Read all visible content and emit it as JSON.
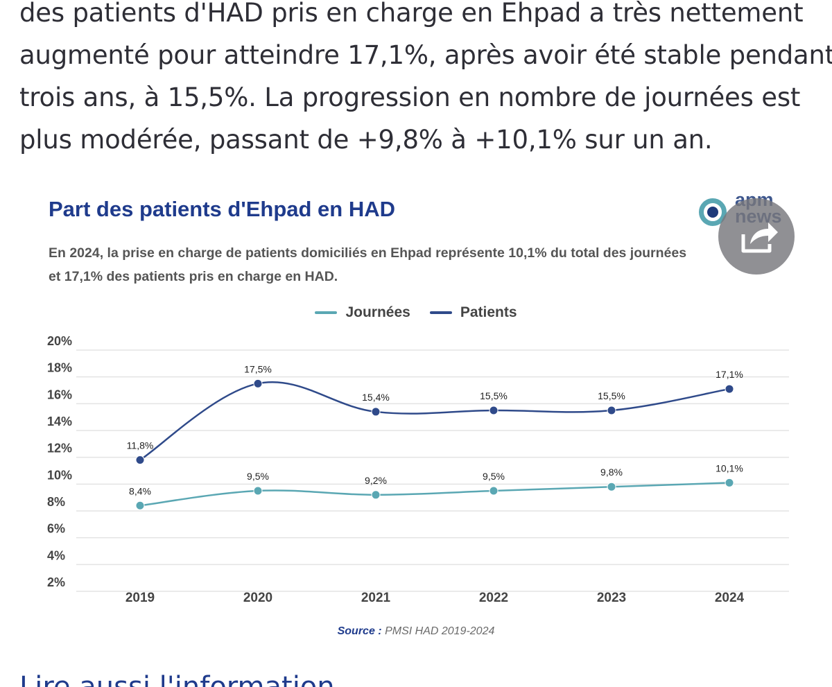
{
  "article": {
    "lines": [
      "des patients d'HAD pris en charge en Ehpad a très nettement",
      "augmenté pour atteindre 17,1%, après avoir été stable pendant",
      "trois ans, à 15,5%. La progression en nombre de journées est",
      "plus modérée, passant de +9,8% à +10,1% sur un an."
    ]
  },
  "logo": {
    "line1": "apm",
    "line2": "news"
  },
  "colors": {
    "title": "#1f3b8c",
    "journees": "#5aa7b3",
    "patients": "#2f4a8a",
    "grid": "#e3e3e3"
  },
  "icons": {
    "share": "share-icon",
    "logo": "apm-news-logo"
  },
  "chart_data": {
    "type": "line",
    "title": "Part des patients d'Ehpad en HAD",
    "subtitle_lines": [
      "En 2024, la prise en charge de patients domiciliés en Ehpad représente 10,1% du total des journées",
      "et 17,1% des patients pris en charge en HAD."
    ],
    "categories": [
      "2019",
      "2020",
      "2021",
      "2022",
      "2023",
      "2024"
    ],
    "series": [
      {
        "name": "Journées",
        "values": [
          8.4,
          9.5,
          9.2,
          9.5,
          9.8,
          10.1
        ],
        "labels": [
          "8,4%",
          "9,5%",
          "9,2%",
          "9,5%",
          "9,8%",
          "10,1%"
        ]
      },
      {
        "name": "Patients",
        "values": [
          11.8,
          17.5,
          15.4,
          15.5,
          15.5,
          17.1
        ],
        "labels": [
          "11,8%",
          "17,5%",
          "15,4%",
          "15,5%",
          "15,5%",
          "17,1%"
        ]
      }
    ],
    "y_ticks": [
      20,
      18,
      16,
      14,
      12,
      10,
      8,
      6,
      4,
      2
    ],
    "y_tick_labels": [
      "20%",
      "18%",
      "16%",
      "14%",
      "12%",
      "10%",
      "8%",
      "6%",
      "4%",
      "2%"
    ],
    "ylim": [
      2,
      20
    ],
    "grid": true,
    "legend_position": "top-center",
    "source_label": "Source :",
    "source_text": " PMSI HAD 2019-2024"
  },
  "next_section": {
    "heading": "Lire aussi l'information"
  }
}
